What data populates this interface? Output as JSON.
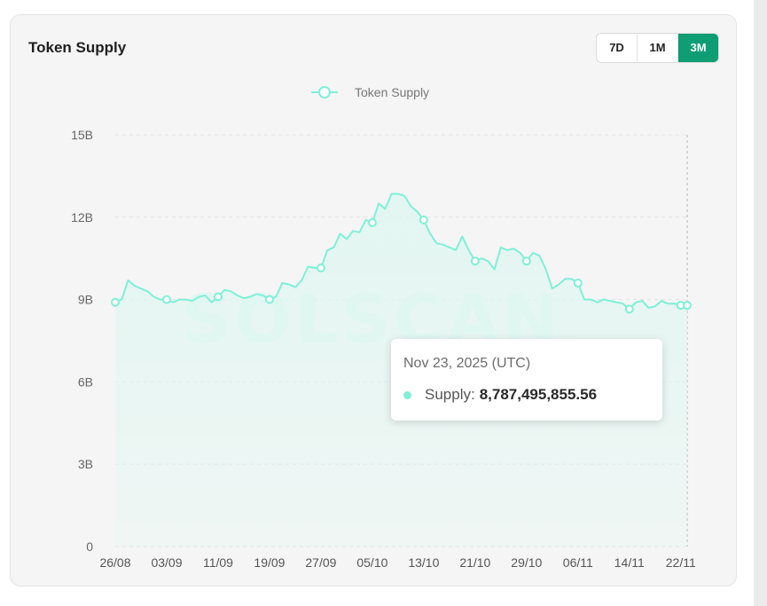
{
  "card": {
    "title": "Token Supply"
  },
  "range_buttons": [
    {
      "label": "7D",
      "active": false
    },
    {
      "label": "1M",
      "active": false
    },
    {
      "label": "3M",
      "active": true
    }
  ],
  "colors": {
    "line": "#7ff0d8",
    "area": "#dff7f1",
    "active_button": "#0f9d74",
    "watermark": "#e3f6f1"
  },
  "watermark": "SOLSCAN",
  "tooltip": {
    "date": "Nov 23, 2025 (UTC)",
    "series_label": "Supply:",
    "value": "8,787,495,855.56"
  },
  "chart_data": {
    "type": "area",
    "legend": {
      "label": "Token Supply",
      "placement": "top-center"
    },
    "y_ticks": [
      "0",
      "3B",
      "6B",
      "9B",
      "12B",
      "15B"
    ],
    "y_tick_values": [
      0,
      3,
      6,
      9,
      12,
      15
    ],
    "ylim": [
      0,
      15
    ],
    "y_unit": "B",
    "x_ticks": [
      "26/08",
      "03/09",
      "11/09",
      "19/09",
      "27/09",
      "05/10",
      "13/10",
      "21/10",
      "29/10",
      "06/11",
      "14/11",
      "22/11"
    ],
    "x_tick_days": [
      0,
      8,
      16,
      24,
      32,
      40,
      48,
      56,
      64,
      72,
      80,
      88
    ],
    "grid": "horizontal-dashed",
    "series": [
      {
        "name": "Token Supply",
        "x_days": [
          0,
          1,
          2,
          3,
          4,
          5,
          6,
          7,
          8,
          9,
          10,
          11,
          12,
          13,
          14,
          15,
          16,
          17,
          18,
          19,
          20,
          21,
          22,
          23,
          24,
          25,
          26,
          27,
          28,
          29,
          30,
          31,
          32,
          33,
          34,
          35,
          36,
          37,
          38,
          39,
          40,
          41,
          42,
          43,
          44,
          45,
          46,
          47,
          48,
          49,
          50,
          51,
          52,
          53,
          54,
          55,
          56,
          57,
          58,
          59,
          60,
          61,
          62,
          63,
          64,
          65,
          66,
          67,
          68,
          69,
          70,
          71,
          72,
          73,
          74,
          75,
          76,
          77,
          78,
          79,
          80,
          81,
          82,
          83,
          84,
          85,
          86,
          87,
          88,
          89
        ],
        "values": [
          8.9,
          9.0,
          9.7,
          9.5,
          9.4,
          9.3,
          9.1,
          9.0,
          9.0,
          8.9,
          9.0,
          9.0,
          8.95,
          9.1,
          9.15,
          8.9,
          9.1,
          9.35,
          9.3,
          9.15,
          9.05,
          9.1,
          9.2,
          9.15,
          9.0,
          9.1,
          9.6,
          9.55,
          9.45,
          9.7,
          10.2,
          10.15,
          10.15,
          10.8,
          10.9,
          11.4,
          11.2,
          11.5,
          11.45,
          11.9,
          11.8,
          12.5,
          12.3,
          12.85,
          12.85,
          12.78,
          12.4,
          12.2,
          11.9,
          11.4,
          11.05,
          11.0,
          10.9,
          10.8,
          11.3,
          10.8,
          10.4,
          10.5,
          10.4,
          10.1,
          10.9,
          10.8,
          10.85,
          10.7,
          10.4,
          10.7,
          10.6,
          10.1,
          9.4,
          9.55,
          9.75,
          9.75,
          9.6,
          9.0,
          9.0,
          8.9,
          9.0,
          8.95,
          8.9,
          8.85,
          8.65,
          8.9,
          8.95,
          8.7,
          8.75,
          8.95,
          8.85,
          8.85,
          8.79,
          8.787
        ],
        "markers_at_days": [
          0,
          8,
          16,
          24,
          32,
          40,
          48,
          56,
          64,
          72,
          80,
          88,
          89
        ]
      }
    ],
    "hover_day": 89
  }
}
